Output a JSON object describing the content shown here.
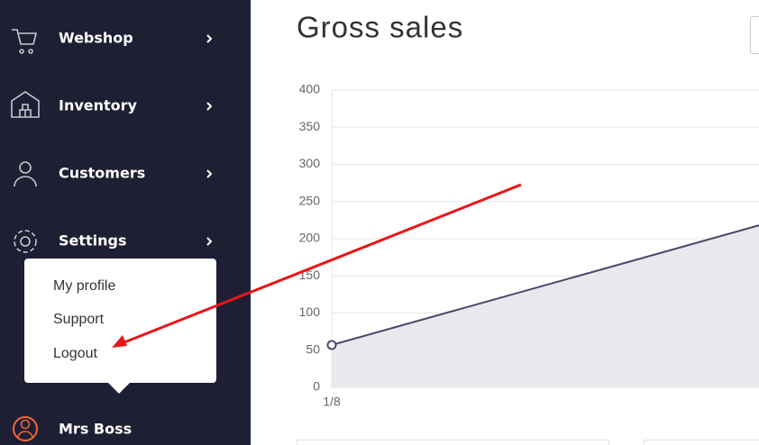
{
  "sidebar": {
    "nav": [
      "Webshop",
      "Inventory",
      "Customers",
      "Settings"
    ],
    "menu": [
      "My profile",
      "Support",
      "Logout"
    ],
    "user": "Mrs Boss"
  },
  "chart_data": {
    "type": "area",
    "title": "Gross sales",
    "categories": [
      "1/8",
      null
    ],
    "values": [
      57,
      218
    ],
    "color": "#4a4868",
    "fill": "#e9e9ed",
    "ylim": [
      0,
      400
    ],
    "yticks": [
      0,
      50,
      100,
      150,
      200,
      250,
      300,
      350,
      400
    ],
    "grid": true
  }
}
